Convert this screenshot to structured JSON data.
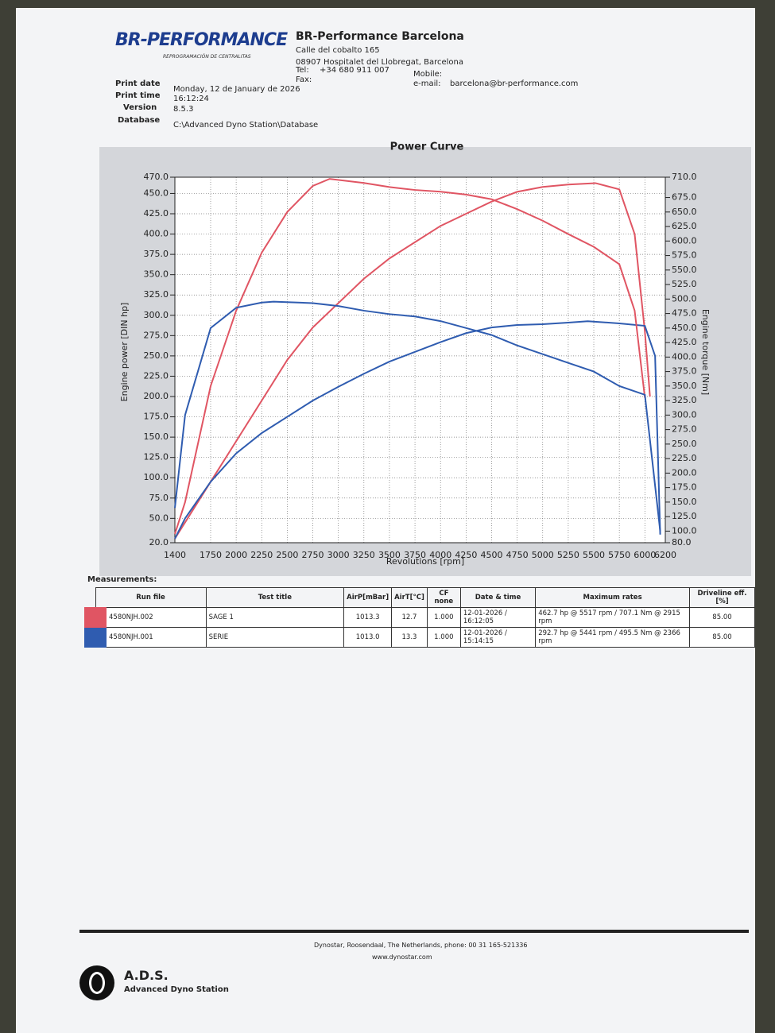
{
  "header": {
    "logo": "BR-PERFORMANCE",
    "logo_tagline": "REPROGRAMACIÓN DE CENTRALITAS",
    "company": "BR-Performance Barcelona",
    "street": "Calle del cobalto 165",
    "city": "08907 Hospitalet del Llobregat, Barcelona",
    "tel_label": "Tel:",
    "tel": "+34 680 911 007",
    "mobile_label": "Mobile:",
    "fax_label": "Fax:",
    "email_label": "e-mail:",
    "email": "barcelona@br-performance.com"
  },
  "info": {
    "print_date_label": "Print date",
    "print_date": "Monday, 12 de January de 2026",
    "print_time_label": "Print time",
    "print_time": "16:12:24",
    "version_label": "Version",
    "version": "8.5.3",
    "database_label": "Database",
    "database": "C:\\Advanced Dyno Station\\Database"
  },
  "chart_data": {
    "type": "line",
    "title": "Power Curve",
    "x_label": "Revolutions [rpm]",
    "y_label": "Engine power [DIN hp]",
    "y2_label": "Engine torque [Nm]",
    "grid": true,
    "xlim": [
      1400,
      6200
    ],
    "xticks": [
      1400,
      1750,
      2000,
      2250,
      2500,
      2750,
      3000,
      3250,
      3500,
      3750,
      4000,
      4250,
      4500,
      4750,
      5000,
      5250,
      5500,
      5750,
      6000,
      6200
    ],
    "ylim": [
      20,
      470
    ],
    "yticks": [
      {
        "value": 20,
        "label": "20.0"
      },
      {
        "value": 50,
        "label": "50.0"
      },
      {
        "value": 75,
        "label": "75.0"
      },
      {
        "value": 100,
        "label": "100.0"
      },
      {
        "value": 125,
        "label": "125.0"
      },
      {
        "value": 150,
        "label": "150.0"
      },
      {
        "value": 175,
        "label": "175.0"
      },
      {
        "value": 200,
        "label": "200.0"
      },
      {
        "value": 225,
        "label": "225.0"
      },
      {
        "value": 250,
        "label": "250.0"
      },
      {
        "value": 275,
        "label": "275.0"
      },
      {
        "value": 300,
        "label": "300.0"
      },
      {
        "value": 325,
        "label": "325.0"
      },
      {
        "value": 350,
        "label": "350.0"
      },
      {
        "value": 375,
        "label": "375.0"
      },
      {
        "value": 400,
        "label": "400.0"
      },
      {
        "value": 425,
        "label": "425.0"
      },
      {
        "value": 450,
        "label": "450.0"
      },
      {
        "value": 470,
        "label": "470.0"
      }
    ],
    "y2lim": [
      80,
      710
    ],
    "y2ticks": [
      {
        "value": 80,
        "label": "80.0"
      },
      {
        "value": 100,
        "label": "100.0"
      },
      {
        "value": 125,
        "label": "125.0"
      },
      {
        "value": 150,
        "label": "150.0"
      },
      {
        "value": 175,
        "label": "175.0"
      },
      {
        "value": 200,
        "label": "200.0"
      },
      {
        "value": 225,
        "label": "225.0"
      },
      {
        "value": 250,
        "label": "250.0"
      },
      {
        "value": 275,
        "label": "275.0"
      },
      {
        "value": 300,
        "label": "300.0"
      },
      {
        "value": 325,
        "label": "325.0"
      },
      {
        "value": 350,
        "label": "350.0"
      },
      {
        "value": 375,
        "label": "375.0"
      },
      {
        "value": 400,
        "label": "400.0"
      },
      {
        "value": 425,
        "label": "425.0"
      },
      {
        "value": 450,
        "label": "450.0"
      },
      {
        "value": 475,
        "label": "475.0"
      },
      {
        "value": 500,
        "label": "500.0"
      },
      {
        "value": 525,
        "label": "525.0"
      },
      {
        "value": 550,
        "label": "550.0"
      },
      {
        "value": 575,
        "label": "575.0"
      },
      {
        "value": 600,
        "label": "600.0"
      },
      {
        "value": 625,
        "label": "625.0"
      },
      {
        "value": 650,
        "label": "650.0"
      },
      {
        "value": 675,
        "label": "675.0"
      },
      {
        "value": 710,
        "label": "710.0"
      }
    ],
    "series": [
      {
        "color": "#e05563",
        "x": [
          1400,
          1500,
          1750,
          2000,
          2250,
          2500,
          2750,
          3000,
          3250,
          3500,
          3750,
          4000,
          4250,
          4500,
          4750,
          5000,
          5250,
          5517,
          5750,
          5900,
          6000,
          6050
        ],
        "values": [
          25,
          45,
          95,
          145,
          195,
          245,
          285,
          315,
          345,
          370,
          390,
          410,
          425,
          440,
          452,
          458,
          461,
          462.7,
          455,
          400,
          280,
          200
        ]
      },
      {
        "color": "#2f5cb0",
        "x": [
          1400,
          1500,
          1750,
          2000,
          2250,
          2500,
          2750,
          3000,
          3250,
          3500,
          3750,
          4000,
          4250,
          4500,
          4750,
          5000,
          5250,
          5441,
          5750,
          6000,
          6100,
          6150
        ],
        "values": [
          25,
          50,
          95,
          130,
          155,
          175,
          195,
          212,
          228,
          243,
          255,
          267,
          278,
          285,
          288,
          289,
          291,
          292.7,
          290,
          287,
          250,
          30
        ]
      },
      {
        "color": "#e05563",
        "axis": "y2",
        "x": [
          1400,
          1500,
          1750,
          2000,
          2250,
          2500,
          2750,
          2915,
          3250,
          3500,
          3750,
          4000,
          4250,
          4500,
          4750,
          5000,
          5250,
          5500,
          5750,
          5900,
          6000
        ],
        "values": [
          95,
          150,
          350,
          480,
          580,
          650,
          695,
          707.1,
          700,
          693,
          688,
          685,
          680,
          672,
          655,
          635,
          612,
          590,
          560,
          480,
          330
        ]
      },
      {
        "color": "#2f5cb0",
        "axis": "y2",
        "x": [
          1400,
          1500,
          1750,
          2000,
          2250,
          2366,
          2750,
          3000,
          3250,
          3500,
          3750,
          4000,
          4250,
          4500,
          4750,
          5000,
          5250,
          5500,
          5750,
          6000,
          6150
        ],
        "values": [
          140,
          300,
          450,
          485,
          494,
          495.5,
          493,
          488,
          480,
          474,
          470,
          462,
          450,
          438,
          420,
          405,
          390,
          375,
          350,
          335,
          100
        ]
      }
    ]
  },
  "table": {
    "title": "Measurements:",
    "headers": [
      "Run file",
      "Test title",
      "AirP[mBar]",
      "AirT[°C]",
      "CF none",
      "Date & time",
      "Maximum rates",
      "Driveline eff.[%]"
    ],
    "rows": [
      {
        "color": "#e05563",
        "cells": [
          "4580NJH.002",
          "SAGE 1",
          "1013.3",
          "12.7",
          "1.000",
          "12-01-2026 / 16:12:05",
          "462.7 hp @ 5517 rpm / 707.1 Nm @ 2915 rpm",
          "85.00"
        ]
      },
      {
        "color": "#2f5cb0",
        "cells": [
          "4580NJH.001",
          "SERIE",
          "1013.0",
          "13.3",
          "1.000",
          "12-01-2026 / 15:14:15",
          "292.7 hp @ 5441 rpm / 495.5 Nm @ 2366 rpm",
          "85.00"
        ]
      }
    ]
  },
  "footer": {
    "maker": "Dynostar, Roosendaal, The Netherlands, phone: 00 31 165-521336",
    "website": "www.dynostar.com",
    "brand": "A.D.S.",
    "brand_full": "Advanced Dyno Station"
  }
}
